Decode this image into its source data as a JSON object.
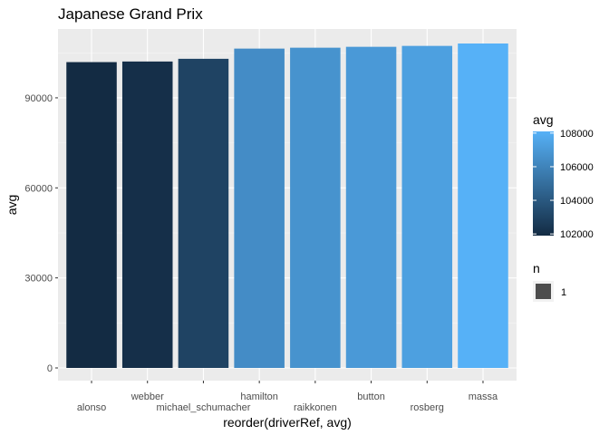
{
  "chart_data": {
    "type": "bar",
    "title": "Japanese Grand Prix",
    "xlabel": "reorder(driverRef, avg)",
    "ylabel": "avg",
    "categories": [
      "alonso",
      "webber",
      "michael_schumacher",
      "hamilton",
      "raikkonen",
      "button",
      "rosberg",
      "massa"
    ],
    "values": [
      101900,
      102100,
      103000,
      106400,
      106700,
      107000,
      107300,
      108100
    ],
    "ylim": [
      0,
      111000
    ],
    "yticks": [
      0,
      30000,
      60000,
      90000
    ],
    "grid": true,
    "legend_position": "right",
    "color_scale": {
      "title": "avg",
      "low": "#132b43",
      "high": "#56b1f7",
      "range": [
        101900,
        108100
      ],
      "ticks": [
        102000,
        104000,
        106000,
        108000
      ]
    },
    "size_legend": {
      "title": "n",
      "labels": [
        "1"
      ],
      "swatch_color": "#4d4d4d"
    }
  }
}
